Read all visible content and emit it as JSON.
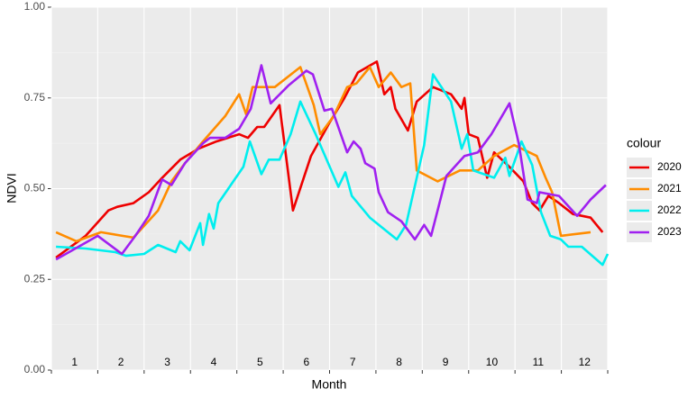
{
  "chart_data": {
    "type": "line",
    "x_label": "Month",
    "y_label": "NDVI",
    "xlim": [
      0,
      12
    ],
    "xticks": [
      0,
      1,
      2,
      3,
      4,
      5,
      6,
      7,
      8,
      9,
      10,
      11,
      12
    ],
    "ylim": [
      0,
      1
    ],
    "yticks": [
      {
        "value": 0,
        "label": "0.00"
      },
      {
        "value": 0.25,
        "label": "0.25"
      },
      {
        "value": 0.5,
        "label": "0.50"
      },
      {
        "value": 0.75,
        "label": "0.75"
      },
      {
        "value": 1,
        "label": "1.00"
      }
    ],
    "y_minor_ticks": [
      0.125,
      0.375,
      0.625,
      0.875
    ],
    "grid": true,
    "legend_title": "colour",
    "legend": "right",
    "annotations": [
      {
        "x": 0.5,
        "text": "1"
      },
      {
        "x": 1.5,
        "text": "2"
      },
      {
        "x": 2.5,
        "text": "3"
      },
      {
        "x": 3.5,
        "text": "4"
      },
      {
        "x": 4.5,
        "text": "5"
      },
      {
        "x": 5.5,
        "text": "6"
      },
      {
        "x": 6.5,
        "text": "7"
      },
      {
        "x": 7.5,
        "text": "8"
      },
      {
        "x": 8.5,
        "text": "9"
      },
      {
        "x": 9.5,
        "text": "10"
      },
      {
        "x": 10.5,
        "text": "11"
      },
      {
        "x": 11.5,
        "text": "12"
      }
    ],
    "series": [
      {
        "name": "2020",
        "color": "#ee0000",
        "x": [
          0.1,
          0.74,
          1.23,
          1.42,
          1.77,
          2.1,
          2.39,
          2.78,
          3.17,
          3.56,
          4.05,
          4.24,
          4.44,
          4.59,
          4.92,
          5.21,
          5.6,
          5.99,
          6.32,
          6.61,
          7.02,
          7.18,
          7.32,
          7.42,
          7.69,
          7.88,
          8.23,
          8.62,
          8.85,
          8.91,
          9.0,
          9.2,
          9.4,
          9.55,
          9.88,
          10.18,
          10.37,
          10.53,
          10.72,
          10.95,
          11.25,
          11.63,
          11.89
        ],
        "values": [
          0.31,
          0.37,
          0.44,
          0.45,
          0.46,
          0.49,
          0.53,
          0.58,
          0.61,
          0.63,
          0.65,
          0.64,
          0.67,
          0.67,
          0.73,
          0.44,
          0.59,
          0.68,
          0.75,
          0.82,
          0.85,
          0.76,
          0.78,
          0.72,
          0.66,
          0.74,
          0.78,
          0.76,
          0.72,
          0.75,
          0.65,
          0.64,
          0.53,
          0.6,
          0.56,
          0.52,
          0.46,
          0.44,
          0.48,
          0.46,
          0.43,
          0.42,
          0.38
        ]
      },
      {
        "name": "2021",
        "color": "#ff8c00",
        "x": [
          0.1,
          0.54,
          1.07,
          1.77,
          2.3,
          2.59,
          2.88,
          3.27,
          3.75,
          4.05,
          4.2,
          4.34,
          4.82,
          5.37,
          5.66,
          5.8,
          6.09,
          6.38,
          6.58,
          6.87,
          7.06,
          7.32,
          7.55,
          7.74,
          7.88,
          8.33,
          8.81,
          9.2,
          9.55,
          9.98,
          10.47,
          10.66,
          10.8,
          10.99,
          11.63
        ],
        "values": [
          0.38,
          0.355,
          0.38,
          0.365,
          0.44,
          0.52,
          0.57,
          0.63,
          0.7,
          0.76,
          0.705,
          0.78,
          0.78,
          0.835,
          0.73,
          0.65,
          0.7,
          0.78,
          0.79,
          0.835,
          0.78,
          0.82,
          0.78,
          0.79,
          0.55,
          0.52,
          0.55,
          0.55,
          0.59,
          0.62,
          0.59,
          0.53,
          0.49,
          0.37,
          0.38
        ]
      },
      {
        "name": "2022",
        "color": "#00eeee",
        "x": [
          0.1,
          0.74,
          1.38,
          1.61,
          2.0,
          2.3,
          2.68,
          2.78,
          2.98,
          3.21,
          3.27,
          3.4,
          3.5,
          3.6,
          4.14,
          4.28,
          4.53,
          4.69,
          4.92,
          5.16,
          5.37,
          5.7,
          6.19,
          6.34,
          6.48,
          6.87,
          7.45,
          7.65,
          8.04,
          8.23,
          8.62,
          8.85,
          8.97,
          9.1,
          9.55,
          9.79,
          9.88,
          10.14,
          10.37,
          10.56,
          10.76,
          10.99,
          11.15,
          11.44,
          11.89,
          12.0
        ],
        "values": [
          0.34,
          0.335,
          0.325,
          0.315,
          0.32,
          0.345,
          0.325,
          0.355,
          0.33,
          0.405,
          0.345,
          0.43,
          0.39,
          0.46,
          0.56,
          0.63,
          0.54,
          0.58,
          0.58,
          0.65,
          0.74,
          0.65,
          0.505,
          0.545,
          0.48,
          0.42,
          0.36,
          0.4,
          0.62,
          0.815,
          0.74,
          0.61,
          0.65,
          0.55,
          0.53,
          0.585,
          0.535,
          0.63,
          0.565,
          0.435,
          0.37,
          0.36,
          0.34,
          0.34,
          0.29,
          0.32
        ]
      },
      {
        "name": "2023",
        "color": "#a020f0",
        "x": [
          0.1,
          0.45,
          1.0,
          1.52,
          1.81,
          2.1,
          2.3,
          2.39,
          2.59,
          2.88,
          3.27,
          3.42,
          3.75,
          4.05,
          4.3,
          4.53,
          4.73,
          5.12,
          5.5,
          5.64,
          5.89,
          6.05,
          6.38,
          6.52,
          6.67,
          6.77,
          6.97,
          7.06,
          7.26,
          7.55,
          7.84,
          8.04,
          8.19,
          8.52,
          8.91,
          9.2,
          9.49,
          9.88,
          10.08,
          10.27,
          10.47,
          10.53,
          10.95,
          11.34,
          11.63,
          11.96
        ],
        "values": [
          0.305,
          0.33,
          0.37,
          0.32,
          0.37,
          0.425,
          0.495,
          0.525,
          0.51,
          0.57,
          0.625,
          0.64,
          0.64,
          0.665,
          0.72,
          0.84,
          0.735,
          0.785,
          0.825,
          0.815,
          0.715,
          0.72,
          0.6,
          0.63,
          0.61,
          0.57,
          0.555,
          0.49,
          0.435,
          0.41,
          0.36,
          0.4,
          0.37,
          0.535,
          0.59,
          0.6,
          0.65,
          0.735,
          0.625,
          0.47,
          0.46,
          0.49,
          0.48,
          0.425,
          0.47,
          0.51
        ]
      }
    ]
  }
}
